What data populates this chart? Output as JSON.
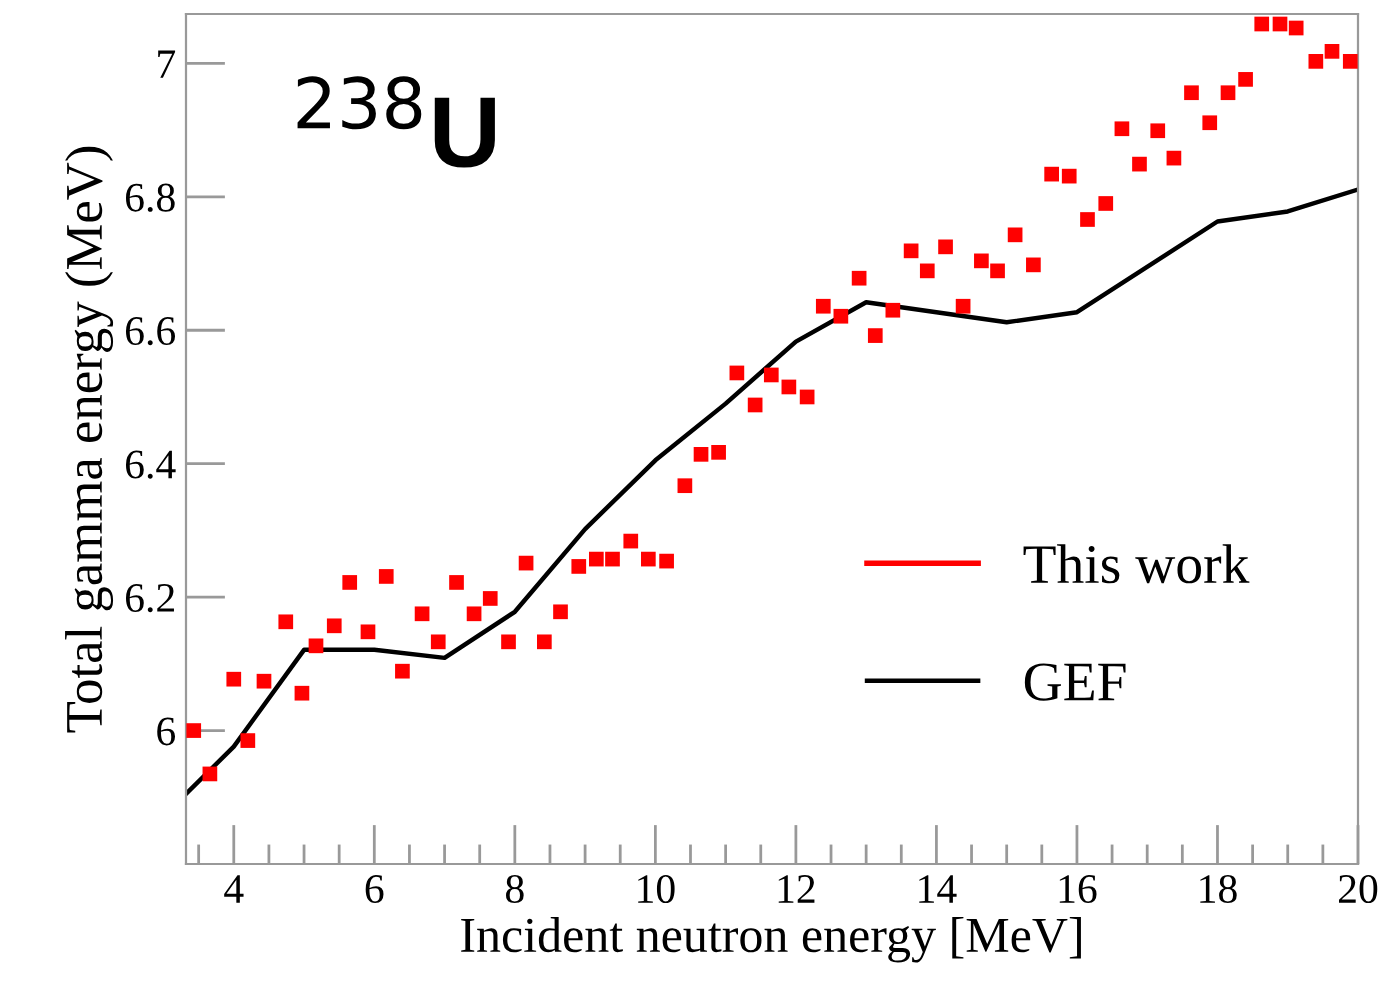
{
  "chart_data": {
    "type": "scatter",
    "xlabel": "Incident neutron energy [MeV]",
    "ylabel": "Total gamma energy (MeV)",
    "annotations": [
      {
        "text": "$^{238}$U"
      }
    ],
    "xlim": [
      3.32,
      20
    ],
    "xticks": [
      4,
      6,
      8,
      10,
      12,
      14,
      16,
      18,
      20
    ],
    "ylim": [
      5.8,
      7.074
    ],
    "yticks": [
      6,
      6.2,
      6.4,
      6.6,
      6.8,
      7
    ],
    "legend": "bottom right",
    "grid": false,
    "series": [
      {
        "name": "This work",
        "marker": "square",
        "color": "#ff0000",
        "x": [
          3.43,
          3.66,
          4.0,
          4.2,
          4.43,
          4.74,
          4.97,
          5.17,
          5.43,
          5.65,
          5.91,
          6.17,
          6.4,
          6.68,
          6.91,
          7.17,
          7.42,
          7.65,
          7.91,
          8.16,
          8.42,
          8.65,
          8.91,
          9.16,
          9.39,
          9.65,
          9.9,
          10.16,
          10.42,
          10.65,
          10.9,
          11.16,
          11.42,
          11.65,
          11.9,
          12.16,
          12.39,
          12.64,
          12.9,
          13.13,
          13.38,
          13.64,
          13.87,
          14.13,
          14.38,
          14.64,
          14.87,
          15.12,
          15.38,
          15.64,
          15.89,
          16.15,
          16.41,
          16.64,
          16.89,
          17.15,
          17.38,
          17.63,
          17.89,
          18.15,
          18.4,
          18.63,
          18.89,
          19.12,
          19.4,
          19.63,
          19.89
        ],
        "values": [
          6.0,
          5.935,
          6.077,
          5.985,
          6.074,
          6.163,
          6.056,
          6.127,
          6.157,
          6.222,
          6.148,
          6.231,
          6.089,
          6.175,
          6.133,
          6.222,
          6.175,
          6.198,
          6.133,
          6.251,
          6.133,
          6.178,
          6.246,
          6.257,
          6.257,
          6.284,
          6.257,
          6.254,
          6.367,
          6.414,
          6.417,
          6.536,
          6.488,
          6.533,
          6.515,
          6.5,
          6.636,
          6.621,
          6.678,
          6.592,
          6.63,
          6.719,
          6.689,
          6.725,
          6.636,
          6.704,
          6.689,
          6.743,
          6.698,
          6.834,
          6.831,
          6.766,
          6.79,
          6.902,
          6.849,
          6.899,
          6.858,
          6.956,
          6.911,
          6.956,
          6.976,
          7.059,
          7.059,
          7.053,
          7.003,
          7.018,
          7.003
        ]
      },
      {
        "name": "GEF",
        "type": "line",
        "line_style": "solid",
        "color": "#000000",
        "x": [
          3.32,
          4,
          5,
          6,
          7,
          8,
          9,
          10,
          11,
          12,
          13,
          15,
          16,
          18,
          19,
          20
        ],
        "values": [
          5.905,
          5.976,
          6.121,
          6.121,
          6.109,
          6.178,
          6.302,
          6.405,
          6.49,
          6.583,
          6.642,
          6.612,
          6.627,
          6.763,
          6.778,
          6.811
        ]
      }
    ]
  }
}
